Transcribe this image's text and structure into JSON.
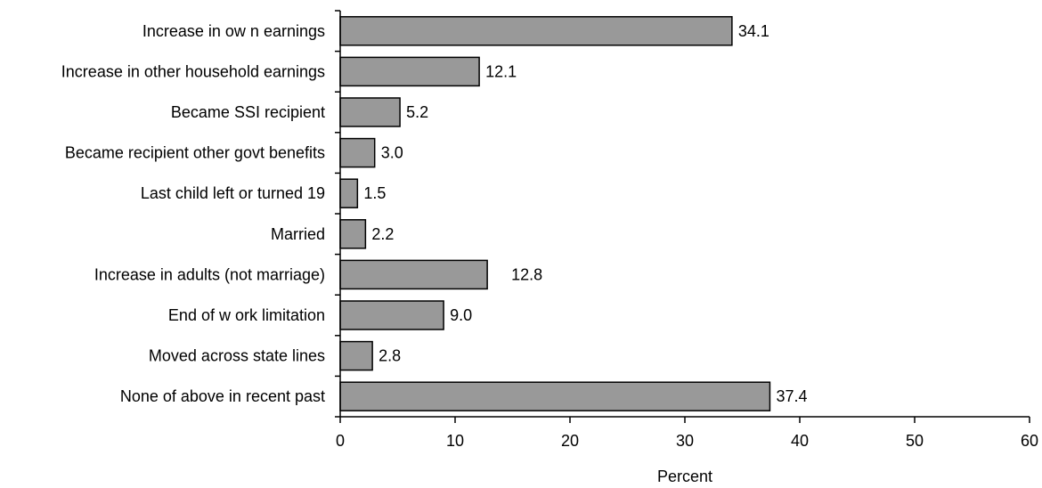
{
  "colors": {
    "bar_fill": "#999999",
    "bar_stroke": "#000000",
    "axis": "#000000",
    "text": "#000000",
    "background": "#ffffff"
  },
  "chart_data": {
    "type": "bar",
    "orientation": "horizontal",
    "categories": [
      "Increase in ow n earnings",
      "Increase in other household earnings",
      "Became SSI recipient",
      "Became recipient other govt benefits",
      "Last child left or turned 19",
      "Married",
      "Increase in adults (not marriage)",
      "End of w ork limitation",
      "Moved across state lines",
      "None of above in recent past"
    ],
    "values": [
      34.1,
      12.1,
      5.2,
      3.0,
      1.5,
      2.2,
      12.8,
      9.0,
      2.8,
      37.4
    ],
    "value_labels": [
      "34.1",
      "12.1",
      "5.2",
      "3.0",
      "1.5",
      "2.2",
      "12.8",
      "9.0",
      "2.8",
      "37.4"
    ],
    "title": "",
    "xlabel": "Percent",
    "ylabel": "",
    "xlim": [
      0,
      60
    ],
    "x_ticks": [
      0,
      10,
      20,
      30,
      40,
      50,
      60
    ],
    "x_tick_labels": [
      "0",
      "10",
      "20",
      "30",
      "40",
      "50",
      "60"
    ],
    "grid": false,
    "legend": "none"
  }
}
